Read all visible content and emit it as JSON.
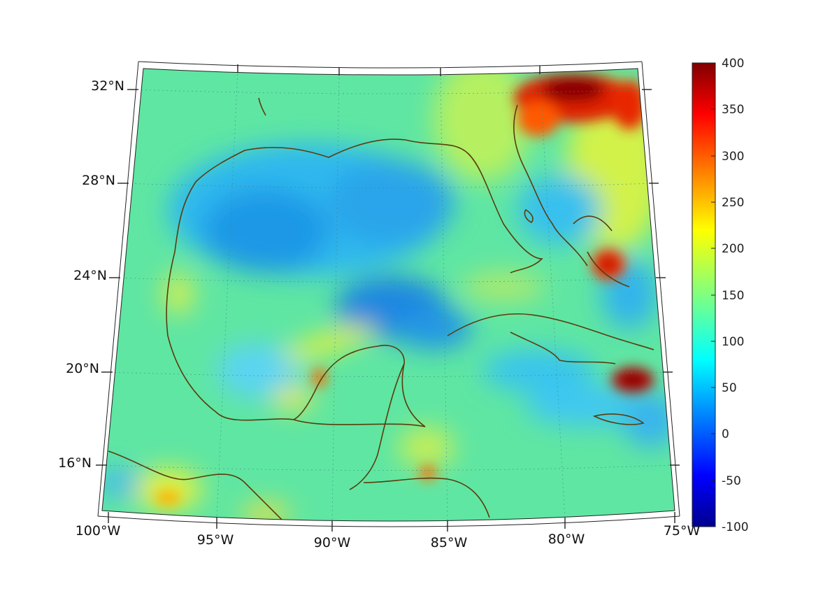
{
  "map": {
    "projection": "conic",
    "colormap": "jet",
    "coastline_color": "#5a3c0c",
    "lon_labels": [
      "100°W",
      "95°W",
      "90°W",
      "85°W",
      "80°W",
      "75°W"
    ],
    "lat_labels": [
      "32°N",
      "28°N",
      "24°N",
      "20°N",
      "16°N"
    ]
  },
  "colorbar": {
    "range": [
      -100,
      400
    ],
    "tick_labels": [
      "400",
      "350",
      "300",
      "250",
      "200",
      "150",
      "100",
      "50",
      "0",
      "-50",
      "-100"
    ]
  },
  "colors": {
    "background_field": "#5ce6a0",
    "basin_low": "#1aa2e8",
    "high": "#8a0000"
  }
}
